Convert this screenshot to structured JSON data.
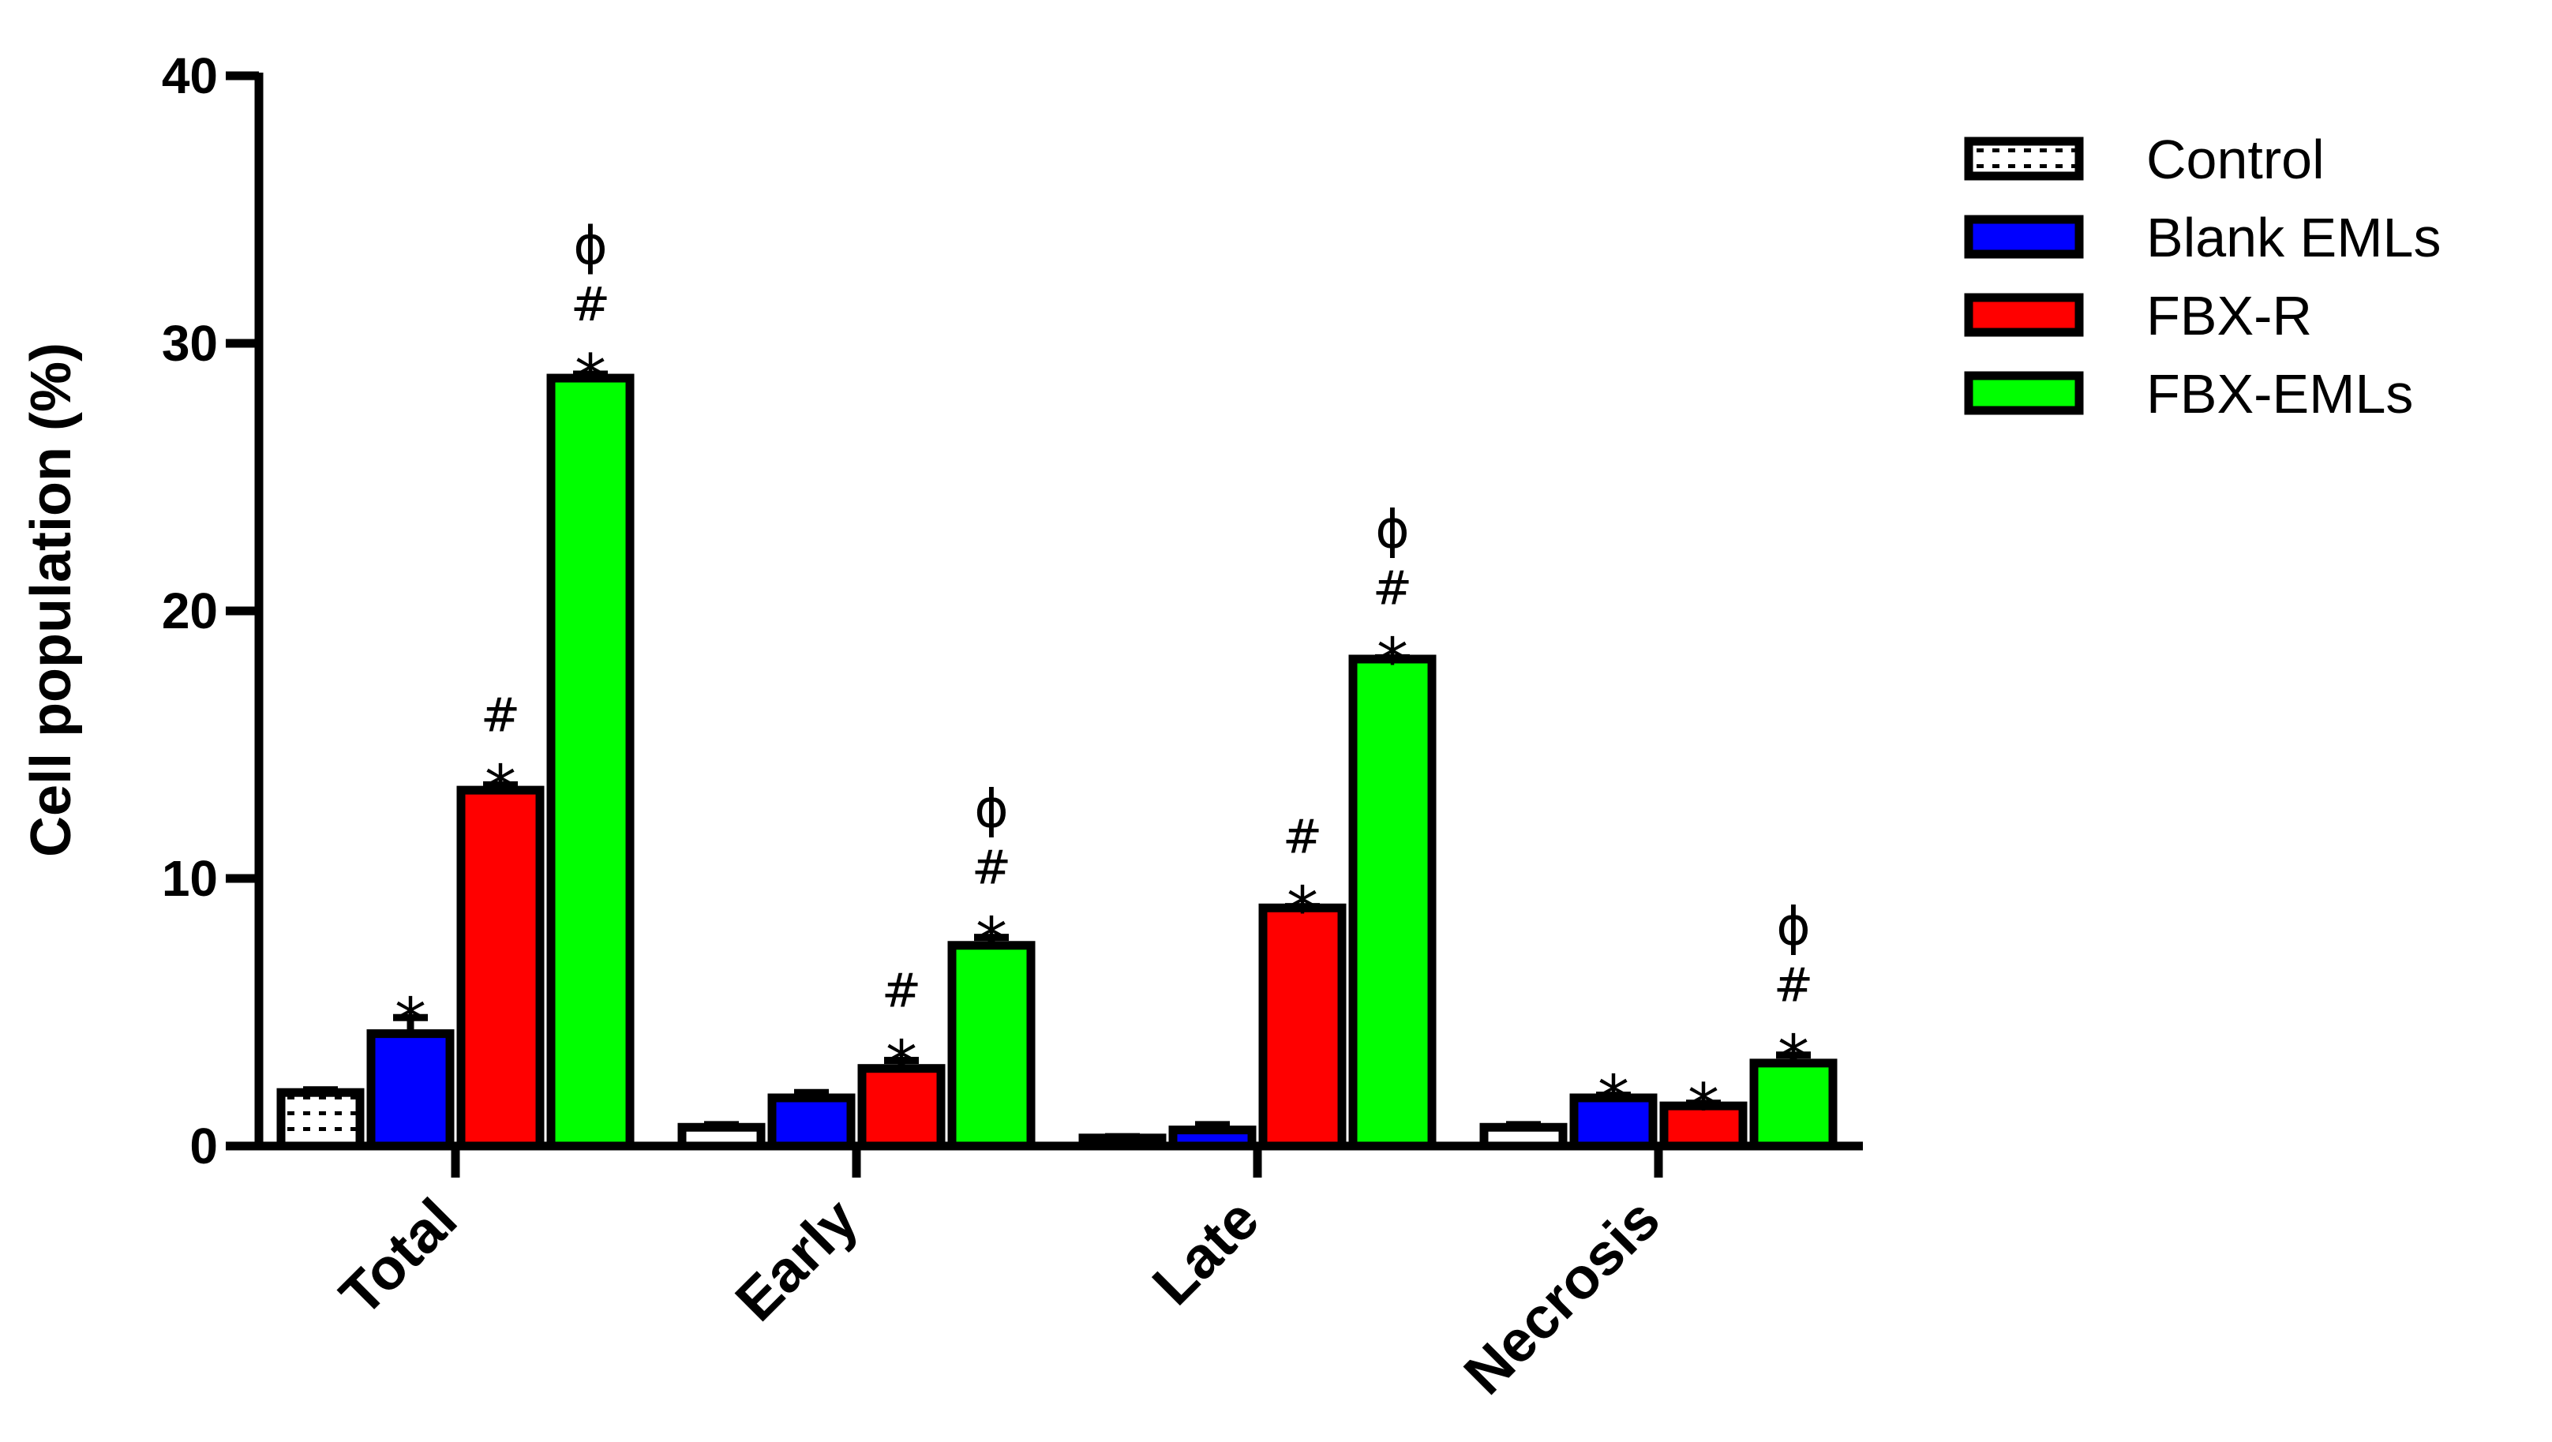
{
  "chart_data": {
    "type": "bar",
    "title": "",
    "xlabel": "",
    "ylabel": "Cell population (%)",
    "ylim": [
      0,
      40
    ],
    "yticks": [
      "0",
      "10",
      "20",
      "30",
      "40"
    ],
    "ytick_values": [
      0,
      10,
      20,
      30,
      40
    ],
    "grid": false,
    "legend_position": "top-right",
    "categories": [
      "Total",
      "Early",
      "Late",
      "Necrosis"
    ],
    "series": [
      {
        "name": "Control",
        "color": "#ffffff",
        "pattern": "dotted",
        "values": [
          2.0,
          0.7,
          0.3,
          0.7
        ],
        "errors": [
          0.1,
          0.1,
          0.05,
          0.1
        ],
        "marks": [
          [],
          [],
          [],
          []
        ]
      },
      {
        "name": "Blank EMLs",
        "color": "#0000ff",
        "values": [
          4.2,
          1.8,
          0.6,
          1.8
        ],
        "errors": [
          0.6,
          0.2,
          0.2,
          0.1
        ],
        "marks": [
          [
            "*"
          ],
          [],
          [],
          [
            "*"
          ]
        ]
      },
      {
        "name": "FBX-R",
        "color": "#ff0000",
        "values": [
          13.3,
          2.9,
          8.9,
          1.5
        ],
        "errors": [
          0.2,
          0.3,
          0.05,
          0.1
        ],
        "marks": [
          [
            "*",
            "#"
          ],
          [
            "*",
            "#"
          ],
          [
            "*",
            "#"
          ],
          [
            "*"
          ]
        ]
      },
      {
        "name": "FBX-EMLs",
        "color": "#00ff00",
        "values": [
          28.7,
          7.5,
          18.2,
          3.1
        ],
        "errors": [
          0.15,
          0.3,
          0.05,
          0.3
        ],
        "marks": [
          [
            "*",
            "#",
            "ϕ"
          ],
          [
            "*",
            "#",
            "ϕ"
          ],
          [
            "*",
            "#",
            "ϕ"
          ],
          [
            "*",
            "#",
            "ϕ"
          ]
        ]
      }
    ]
  }
}
